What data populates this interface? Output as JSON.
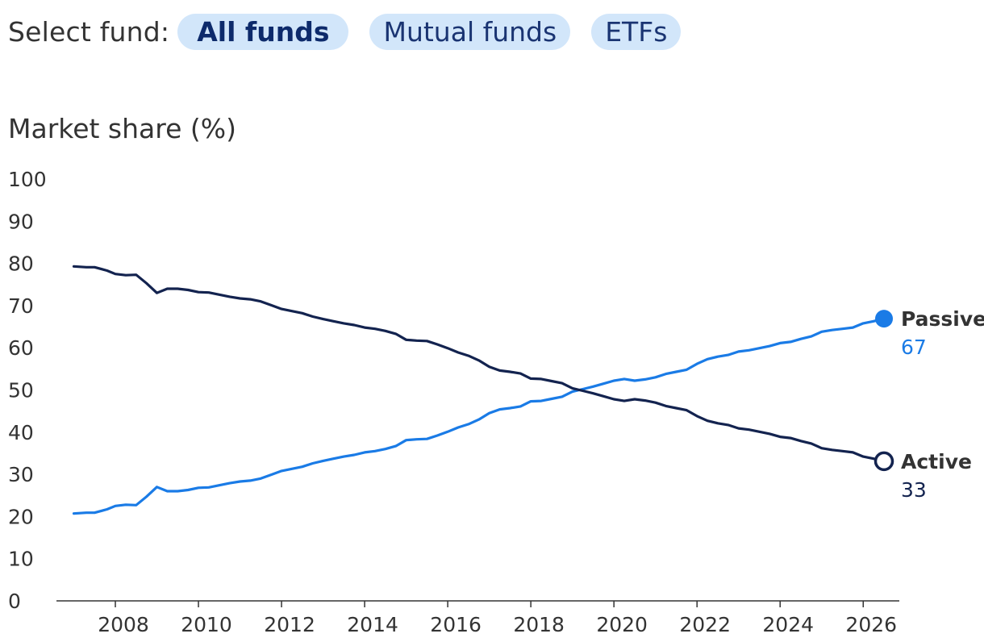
{
  "fund_selector": {
    "label": "Select fund:",
    "options": [
      "All funds",
      "Mutual funds",
      "ETFs"
    ],
    "selected": "All funds"
  },
  "colors": {
    "passive": "#1a7be6",
    "active": "#13234f",
    "axis_text": "#333333",
    "pill_bg": "#d2e6fa",
    "pill_text": "#1a3472"
  },
  "chart_data": {
    "type": "line",
    "ylabel": "Market share (%)",
    "xlabel": "",
    "ylim": [
      0,
      100
    ],
    "xlim": [
      2006.7,
      2027.0
    ],
    "y_ticks": [
      "0",
      "10",
      "20",
      "30",
      "40",
      "50",
      "60",
      "70",
      "80",
      "90",
      "100"
    ],
    "x_ticks": [
      "2008",
      "2010",
      "2012",
      "2014",
      "2016",
      "2018",
      "2020",
      "2022",
      "2024",
      "2026"
    ],
    "grid": false,
    "series": [
      {
        "name": "Passive",
        "end_label": "67",
        "marker": "filled",
        "x": [
          2007.0,
          2007.3,
          2007.5,
          2007.8,
          2008.0,
          2008.25,
          2008.5,
          2008.75,
          2009.0,
          2009.25,
          2009.5,
          2009.75,
          2010.0,
          2010.25,
          2010.5,
          2010.75,
          2011.0,
          2011.25,
          2011.5,
          2011.75,
          2012.0,
          2012.25,
          2012.5,
          2012.75,
          2013.0,
          2013.25,
          2013.5,
          2013.75,
          2014.0,
          2014.25,
          2014.5,
          2014.75,
          2015.0,
          2015.25,
          2015.5,
          2015.75,
          2016.0,
          2016.25,
          2016.5,
          2016.75,
          2017.0,
          2017.25,
          2017.5,
          2017.75,
          2018.0,
          2018.25,
          2018.5,
          2018.75,
          2019.0,
          2019.25,
          2019.5,
          2019.75,
          2020.0,
          2020.25,
          2020.5,
          2020.75,
          2021.0,
          2021.25,
          2021.5,
          2021.75,
          2022.0,
          2022.25,
          2022.5,
          2022.75,
          2023.0,
          2023.25,
          2023.5,
          2023.75,
          2024.0,
          2024.25,
          2024.5,
          2024.75,
          2025.0,
          2025.25,
          2025.5,
          2025.75,
          2026.0,
          2026.25,
          2026.5
        ],
        "values": [
          20.7,
          20.9,
          20.9,
          21.7,
          22.5,
          22.8,
          22.7,
          24.7,
          27.0,
          26.0,
          26.0,
          26.3,
          26.8,
          26.9,
          27.4,
          27.9,
          28.3,
          28.5,
          29.0,
          29.9,
          30.8,
          31.3,
          31.8,
          32.6,
          33.2,
          33.7,
          34.2,
          34.6,
          35.2,
          35.5,
          36.0,
          36.7,
          38.1,
          38.3,
          38.4,
          39.2,
          40.1,
          41.1,
          41.9,
          43.0,
          44.5,
          45.4,
          45.7,
          46.1,
          47.3,
          47.4,
          47.9,
          48.4,
          49.6,
          50.2,
          50.8,
          51.5,
          52.2,
          52.6,
          52.2,
          52.5,
          53.0,
          53.8,
          54.3,
          54.8,
          56.2,
          57.3,
          57.9,
          58.3,
          59.1,
          59.4,
          59.9,
          60.4,
          61.1,
          61.4,
          62.1,
          62.7,
          63.8,
          64.2,
          64.5,
          64.8,
          65.8,
          66.3,
          66.9
        ]
      },
      {
        "name": "Active",
        "end_label": "33",
        "marker": "hollow",
        "x": [
          2007.0,
          2007.3,
          2007.5,
          2007.8,
          2008.0,
          2008.25,
          2008.5,
          2008.75,
          2009.0,
          2009.25,
          2009.5,
          2009.75,
          2010.0,
          2010.25,
          2010.5,
          2010.75,
          2011.0,
          2011.25,
          2011.5,
          2011.75,
          2012.0,
          2012.25,
          2012.5,
          2012.75,
          2013.0,
          2013.25,
          2013.5,
          2013.75,
          2014.0,
          2014.25,
          2014.5,
          2014.75,
          2015.0,
          2015.25,
          2015.5,
          2015.75,
          2016.0,
          2016.25,
          2016.5,
          2016.75,
          2017.0,
          2017.25,
          2017.5,
          2017.75,
          2018.0,
          2018.25,
          2018.5,
          2018.75,
          2019.0,
          2019.25,
          2019.5,
          2019.75,
          2020.0,
          2020.25,
          2020.5,
          2020.75,
          2021.0,
          2021.25,
          2021.5,
          2021.75,
          2022.0,
          2022.25,
          2022.5,
          2022.75,
          2023.0,
          2023.25,
          2023.5,
          2023.75,
          2024.0,
          2024.25,
          2024.5,
          2024.75,
          2025.0,
          2025.25,
          2025.5,
          2025.75,
          2026.0,
          2026.25,
          2026.5
        ],
        "values": [
          79.3,
          79.1,
          79.1,
          78.3,
          77.5,
          77.2,
          77.3,
          75.3,
          73.0,
          74.0,
          74.0,
          73.7,
          73.2,
          73.1,
          72.6,
          72.1,
          71.7,
          71.5,
          71.0,
          70.1,
          69.2,
          68.7,
          68.2,
          67.4,
          66.8,
          66.3,
          65.8,
          65.4,
          64.8,
          64.5,
          64.0,
          63.3,
          61.9,
          61.7,
          61.6,
          60.8,
          59.9,
          58.9,
          58.1,
          57.0,
          55.5,
          54.6,
          54.3,
          53.9,
          52.7,
          52.6,
          52.1,
          51.6,
          50.4,
          49.8,
          49.2,
          48.5,
          47.8,
          47.4,
          47.8,
          47.5,
          47.0,
          46.2,
          45.7,
          45.2,
          43.8,
          42.7,
          42.1,
          41.7,
          40.9,
          40.6,
          40.1,
          39.6,
          38.9,
          38.6,
          37.9,
          37.3,
          36.2,
          35.8,
          35.5,
          35.2,
          34.2,
          33.7,
          33.1
        ]
      }
    ]
  }
}
